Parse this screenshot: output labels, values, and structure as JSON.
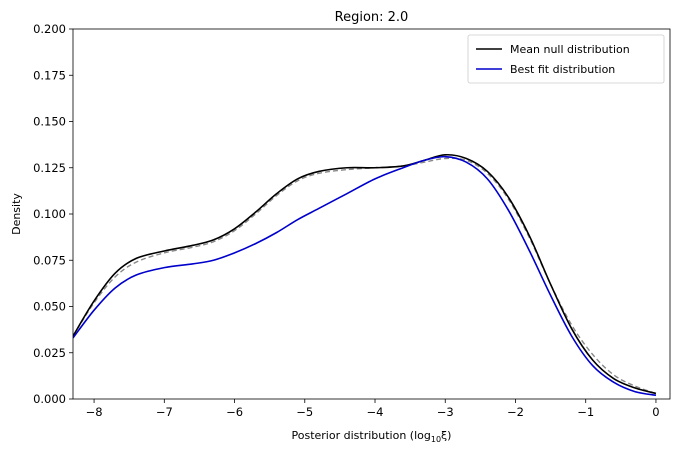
{
  "chart_data": {
    "type": "line",
    "title": "Region: 2.0",
    "xlabel_prefix": "Posterior distribution (log",
    "xlabel_sub": "10",
    "xlabel_suffix": "ξ)",
    "ylabel": "Density",
    "xlim": [
      -8.3,
      0.2
    ],
    "ylim": [
      0.0,
      0.2
    ],
    "xticks": [
      -8,
      -7,
      -6,
      -5,
      -4,
      -3,
      -2,
      -1,
      0
    ],
    "xtick_labels": [
      "−8",
      "−7",
      "−6",
      "−5",
      "−4",
      "−3",
      "−2",
      "−1",
      "0"
    ],
    "yticks": [
      0.0,
      0.025,
      0.05,
      0.075,
      0.1,
      0.125,
      0.15,
      0.175,
      0.2
    ],
    "ytick_labels": [
      "0.000",
      "0.025",
      "0.050",
      "0.075",
      "0.100",
      "0.125",
      "0.150",
      "0.175",
      "0.200"
    ],
    "grid": false,
    "legend_position": "top-right",
    "series": [
      {
        "name": "",
        "color": "#888888",
        "style": "dashed",
        "x": [
          -8.3,
          -8.0,
          -7.7,
          -7.4,
          -7.0,
          -6.6,
          -6.3,
          -6.0,
          -5.7,
          -5.4,
          -5.1,
          -4.8,
          -4.4,
          -4.0,
          -3.6,
          -3.3,
          -3.0,
          -2.7,
          -2.4,
          -2.1,
          -1.8,
          -1.5,
          -1.2,
          -0.9,
          -0.6,
          -0.3,
          0.0
        ],
        "y": [
          0.034,
          0.052,
          0.066,
          0.074,
          0.079,
          0.082,
          0.085,
          0.091,
          0.1,
          0.11,
          0.118,
          0.122,
          0.124,
          0.125,
          0.126,
          0.128,
          0.13,
          0.129,
          0.122,
          0.108,
          0.087,
          0.062,
          0.04,
          0.024,
          0.013,
          0.007,
          0.003
        ]
      },
      {
        "name": "Mean null distribution",
        "color": "#000000",
        "style": "solid",
        "x": [
          -8.3,
          -8.0,
          -7.7,
          -7.4,
          -7.0,
          -6.6,
          -6.3,
          -6.0,
          -5.7,
          -5.4,
          -5.1,
          -4.8,
          -4.4,
          -4.0,
          -3.6,
          -3.3,
          -3.0,
          -2.7,
          -2.4,
          -2.1,
          -1.8,
          -1.5,
          -1.2,
          -0.9,
          -0.6,
          -0.3,
          0.0
        ],
        "y": [
          0.034,
          0.053,
          0.068,
          0.076,
          0.08,
          0.083,
          0.086,
          0.092,
          0.101,
          0.111,
          0.119,
          0.123,
          0.125,
          0.125,
          0.126,
          0.129,
          0.132,
          0.13,
          0.123,
          0.109,
          0.088,
          0.062,
          0.038,
          0.021,
          0.011,
          0.006,
          0.003
        ]
      },
      {
        "name": "Best fit distribution",
        "color": "#0000cc",
        "style": "solid",
        "x": [
          -8.3,
          -8.0,
          -7.7,
          -7.4,
          -7.0,
          -6.6,
          -6.3,
          -6.0,
          -5.7,
          -5.4,
          -5.1,
          -4.8,
          -4.4,
          -4.0,
          -3.6,
          -3.3,
          -3.0,
          -2.7,
          -2.4,
          -2.1,
          -1.8,
          -1.5,
          -1.2,
          -0.9,
          -0.6,
          -0.3,
          0.0
        ],
        "y": [
          0.033,
          0.048,
          0.06,
          0.067,
          0.071,
          0.073,
          0.075,
          0.079,
          0.084,
          0.09,
          0.097,
          0.103,
          0.111,
          0.119,
          0.125,
          0.129,
          0.131,
          0.128,
          0.119,
          0.102,
          0.08,
          0.056,
          0.034,
          0.018,
          0.009,
          0.004,
          0.002
        ]
      }
    ]
  }
}
